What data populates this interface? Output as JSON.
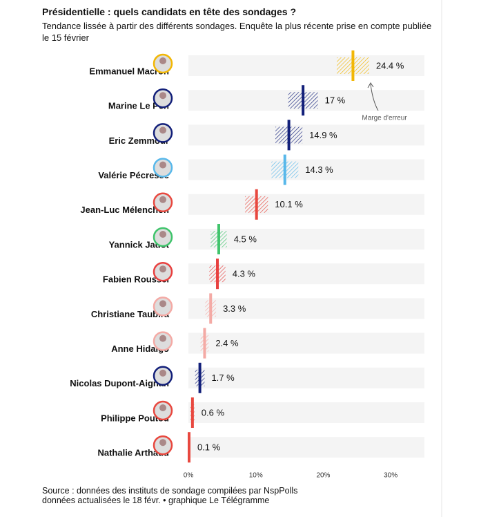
{
  "chart_data": {
    "type": "range-dot",
    "title": "Présidentielle : quels candidats en tête des sondages ?",
    "subtitle": "Tendance lissée à partir des différents sondages. Enquête la plus récente prise en compte publiée le 15 février",
    "categories": [
      "Emmanuel Macron",
      "Marine Le Pen",
      "Eric Zemmour",
      "Valérie Pécresse",
      "Jean-Luc Mélenchon",
      "Yannick Jadot",
      "Fabien Roussel",
      "Christiane Taubira",
      "Anne Hidalgo",
      "Nicolas Dupont-Aignan",
      "Philippe Poutou",
      "Nathalie Arthaud"
    ],
    "values": [
      24.4,
      17,
      14.9,
      14.3,
      10.1,
      4.5,
      4.3,
      3.3,
      2.4,
      1.7,
      0.6,
      0.1
    ],
    "value_labels": [
      "24.4 %",
      "17 %",
      "14.9 %",
      "14.3 %",
      "10.1 %",
      "4.5 %",
      "4.3 %",
      "3.3 %",
      "2.4 %",
      "1.7 %",
      "0.6 %",
      "0.1 %"
    ],
    "errors": [
      2.4,
      2.2,
      2,
      2,
      1.7,
      1.2,
      1.2,
      0.8,
      0.6,
      0.7,
      0.3,
      0.2
    ],
    "colors": [
      "#f2b705",
      "#13207a",
      "#13207a",
      "#58b8ea",
      "#e8483f",
      "#40c46c",
      "#e8403f",
      "#f4aaa5",
      "#f4aaa5",
      "#13207a",
      "#e8483f",
      "#e8483f"
    ],
    "xlim": [
      0,
      35
    ],
    "xticks": [
      {
        "value": 0,
        "label": "0%"
      },
      {
        "value": 10,
        "label": "10%"
      },
      {
        "value": 20,
        "label": "20%"
      },
      {
        "value": 30,
        "label": "30%"
      }
    ],
    "annotation": "Marge d'erreur",
    "source": [
      "Source : données des instituts de sondage compilées par NspPolls",
      "données actualisées le 18 févr. • graphique Le Télégramme"
    ]
  }
}
